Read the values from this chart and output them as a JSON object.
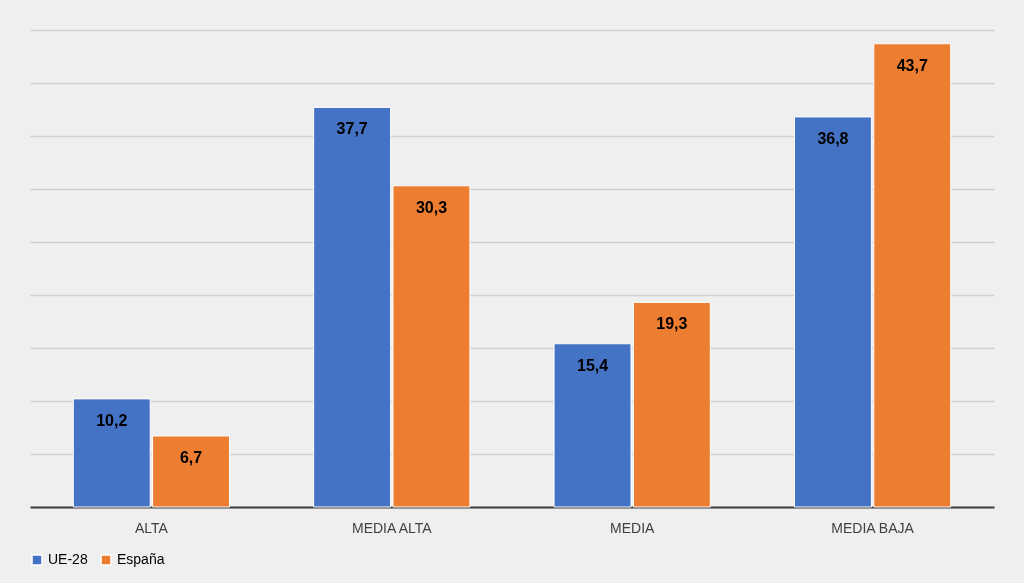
{
  "chart_data": {
    "type": "bar",
    "categories": [
      "ALTA",
      "MEDIA ALTA",
      "MEDIA",
      "MEDIA BAJA"
    ],
    "series": [
      {
        "name": "UE-28",
        "color": "#4472c4",
        "values": [
          10.2,
          37.7,
          15.4,
          36.8
        ],
        "value_labels": [
          "10,2",
          "37,7",
          "15,4",
          "36,8"
        ]
      },
      {
        "name": "España",
        "color": "#ed7d31",
        "values": [
          6.7,
          30.3,
          19.3,
          43.7
        ],
        "value_labels": [
          "6,7",
          "30,3",
          "19,3",
          "43,7"
        ]
      }
    ],
    "tick_labels": "x",
    "grid": "y",
    "legend": "bottom"
  }
}
